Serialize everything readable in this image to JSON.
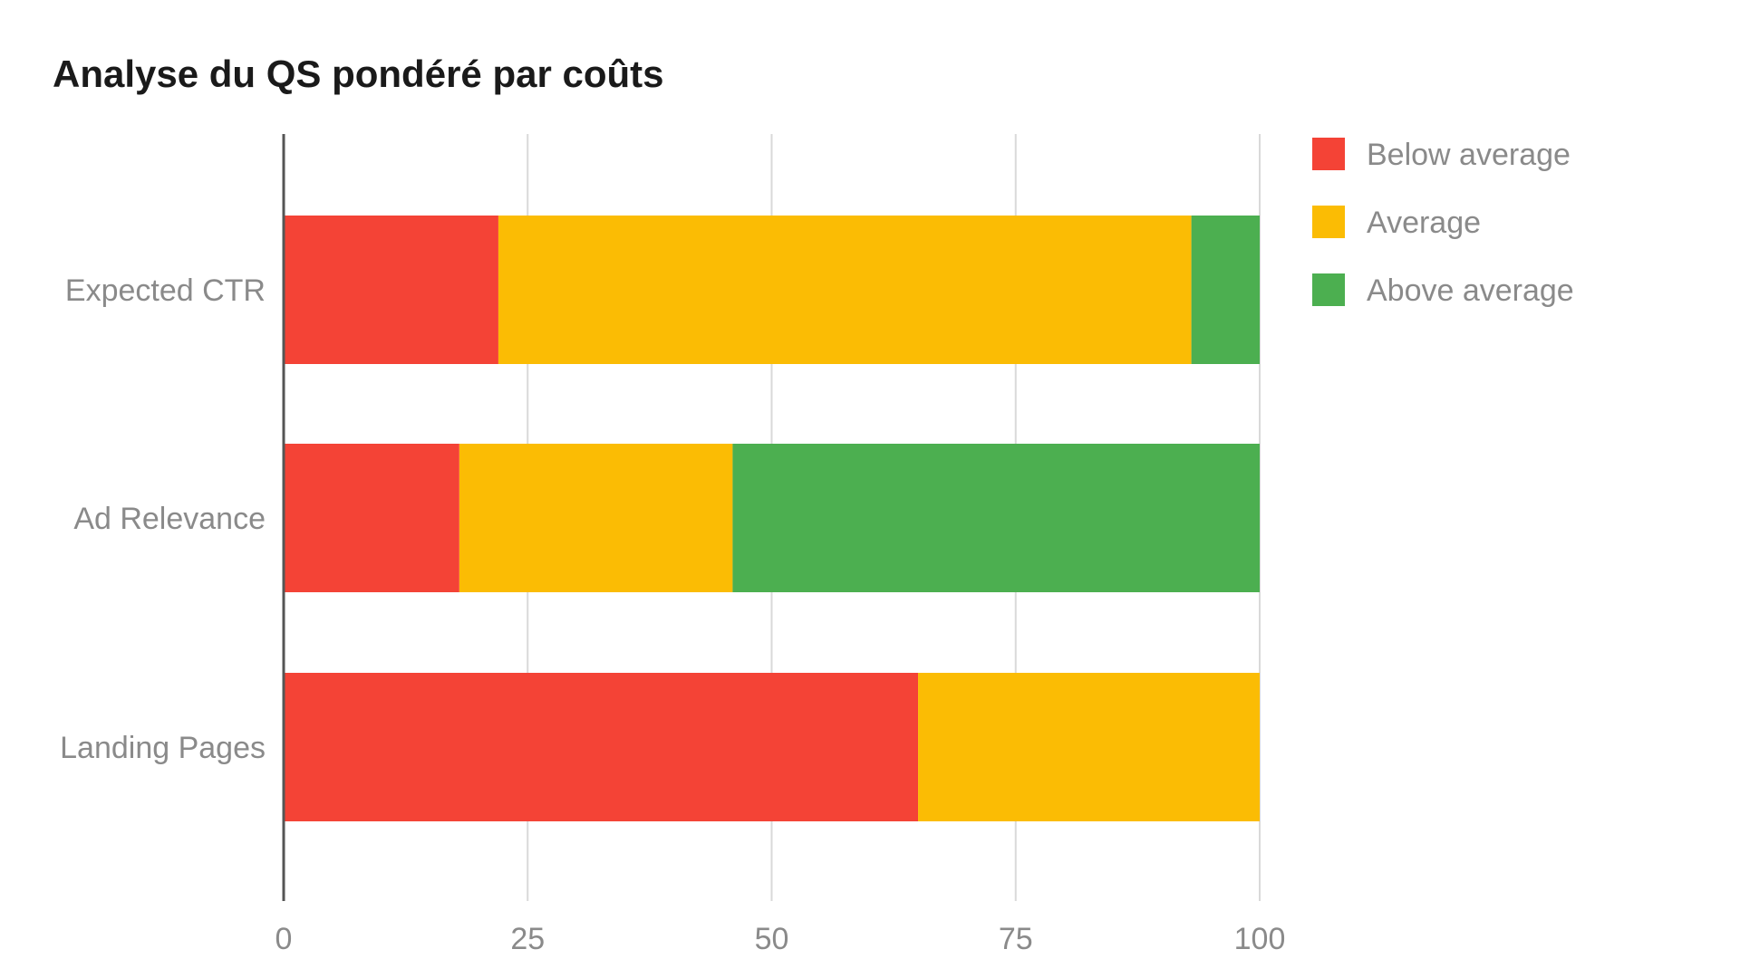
{
  "chart_data": {
    "type": "bar",
    "orientation": "horizontal",
    "stacked": true,
    "title": "Analyse du QS pondéré par coûts",
    "xlabel": "",
    "ylabel": "",
    "categories": [
      "Expected CTR",
      "Ad Relevance",
      "Landing Pages"
    ],
    "series": [
      {
        "name": "Below average",
        "color": "#f44336",
        "values": [
          22,
          18,
          65
        ]
      },
      {
        "name": "Average",
        "color": "#fbbc04",
        "values": [
          71,
          28,
          35
        ]
      },
      {
        "name": "Above average",
        "color": "#4caf50",
        "values": [
          7,
          54,
          0
        ]
      }
    ],
    "xlim": [
      0,
      100
    ],
    "xticks": [
      "0",
      "25",
      "50",
      "75",
      "100"
    ],
    "grid": true,
    "legend": "right"
  }
}
